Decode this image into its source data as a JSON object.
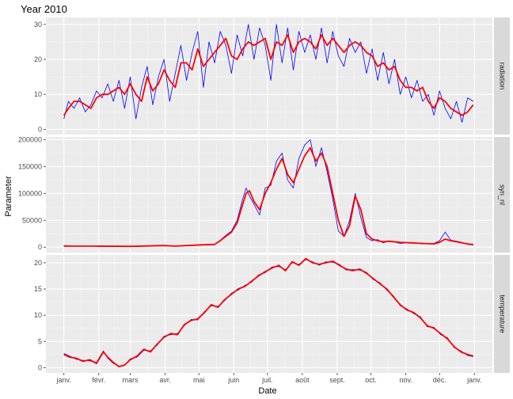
{
  "chart_data": {
    "type": "line",
    "title": "Year 2010",
    "xlabel": "Date",
    "ylabel": "Parameter",
    "x_ticks": [
      "janv.",
      "févr.",
      "mars",
      "avr.",
      "mai",
      "juin",
      "juil.",
      "août",
      "sept.",
      "oct.",
      "nov.",
      "déc.",
      "janv."
    ],
    "x_range": [
      "2010-01-01",
      "2011-01-01"
    ],
    "grid": true,
    "colors": {
      "raw": "#0000ff",
      "smooth": "#ff0000",
      "panel_bg": "#ebebeb",
      "strip_bg": "#d9d9d9"
    },
    "series_styles": [
      {
        "role": "daily",
        "color": "#0000ff",
        "line_width": "thin"
      },
      {
        "role": "smoothed",
        "color": "#ff0000",
        "line_width": "thick"
      }
    ],
    "panels": [
      {
        "name": "radiation",
        "ylim": [
          -1.5,
          32
        ],
        "y_ticks": [
          0,
          10,
          20,
          30
        ],
        "y_tick_labels": [
          "0",
          "10",
          "20",
          "30"
        ],
        "points_doy": [
          1,
          5,
          10,
          15,
          20,
          25,
          30,
          35,
          40,
          45,
          50,
          55,
          60,
          65,
          70,
          75,
          80,
          85,
          90,
          95,
          100,
          105,
          110,
          115,
          120,
          125,
          130,
          135,
          140,
          145,
          150,
          155,
          160,
          165,
          170,
          175,
          180,
          185,
          190,
          195,
          200,
          205,
          210,
          215,
          220,
          225,
          230,
          235,
          240,
          245,
          250,
          255,
          260,
          265,
          270,
          275,
          280,
          285,
          290,
          295,
          300,
          305,
          310,
          315,
          320,
          325,
          330,
          335,
          340,
          345,
          350,
          355,
          360,
          365
        ],
        "smooth": [
          4,
          6,
          8,
          8,
          7,
          6,
          9,
          10,
          10,
          11,
          12,
          10,
          13,
          10,
          8,
          15,
          11,
          13,
          17,
          14,
          12,
          19,
          19,
          17,
          23,
          18,
          20,
          22,
          24,
          26,
          21,
          20,
          23,
          25,
          24,
          25,
          26,
          20,
          25,
          24,
          27,
          22,
          25,
          26,
          25,
          23,
          27,
          24,
          26,
          24,
          22,
          24,
          25,
          24,
          22,
          21,
          18,
          19,
          17,
          18,
          14,
          12,
          12,
          11,
          12,
          8,
          6,
          9,
          8,
          6,
          5,
          4,
          5,
          7
        ],
        "daily": [
          3,
          8,
          6,
          9,
          5,
          7,
          11,
          9,
          13,
          8,
          14,
          6,
          15,
          3,
          12,
          18,
          7,
          15,
          20,
          8,
          16,
          24,
          14,
          22,
          28,
          12,
          25,
          19,
          28,
          24,
          16,
          27,
          21,
          30,
          20,
          29,
          24,
          14,
          30,
          19,
          29,
          17,
          28,
          22,
          27,
          20,
          29,
          19,
          28,
          21,
          18,
          26,
          22,
          25,
          16,
          23,
          14,
          22,
          13,
          20,
          10,
          15,
          9,
          14,
          8,
          10,
          4,
          11,
          6,
          3,
          8,
          2,
          9,
          8
        ]
      },
      {
        "name": "syn_nl",
        "ylim": [
          -10000,
          205000
        ],
        "y_ticks": [
          0,
          50000,
          100000,
          150000,
          200000
        ],
        "y_tick_labels": [
          "0",
          "50000",
          "100000",
          "150000",
          "200000"
        ],
        "points_doy": [
          1,
          30,
          60,
          90,
          100,
          110,
          125,
          135,
          140,
          145,
          150,
          155,
          160,
          163,
          166,
          170,
          175,
          180,
          185,
          190,
          195,
          200,
          205,
          210,
          215,
          220,
          225,
          230,
          235,
          240,
          245,
          250,
          255,
          260,
          265,
          270,
          275,
          280,
          285,
          290,
          300,
          310,
          320,
          330,
          335,
          340,
          345,
          350,
          355,
          360,
          365
        ],
        "smooth": [
          2000,
          2000,
          1500,
          3000,
          2000,
          3000,
          4500,
          5000,
          12000,
          20000,
          28000,
          45000,
          80000,
          100000,
          105000,
          85000,
          70000,
          100000,
          120000,
          145000,
          165000,
          135000,
          120000,
          145000,
          170000,
          185000,
          160000,
          175000,
          150000,
          100000,
          50000,
          20000,
          40000,
          95000,
          70000,
          25000,
          15000,
          12000,
          10000,
          11000,
          9000,
          8000,
          7000,
          6000,
          9000,
          15000,
          12000,
          10000,
          8000,
          6000,
          5000
        ],
        "daily": [
          3000,
          1500,
          1000,
          2500,
          1500,
          3000,
          4000,
          5000,
          13000,
          22000,
          30000,
          50000,
          90000,
          110000,
          95000,
          80000,
          60000,
          110000,
          115000,
          160000,
          175000,
          125000,
          110000,
          165000,
          190000,
          200000,
          150000,
          185000,
          140000,
          90000,
          30000,
          20000,
          50000,
          100000,
          55000,
          18000,
          12000,
          14000,
          8000,
          12000,
          7000,
          9000,
          6000,
          7000,
          12000,
          28000,
          13000,
          11000,
          9000,
          5000,
          4000
        ]
      },
      {
        "name": "temperature",
        "ylim": [
          -1,
          21.5
        ],
        "y_ticks": [
          0,
          5,
          10,
          15,
          20
        ],
        "y_tick_labels": [
          "0",
          "5",
          "10",
          "15",
          "20"
        ],
        "points_doy": [
          1,
          6,
          12,
          18,
          24,
          30,
          36,
          40,
          45,
          50,
          55,
          60,
          66,
          72,
          78,
          84,
          90,
          96,
          102,
          108,
          114,
          120,
          126,
          132,
          138,
          144,
          150,
          156,
          162,
          168,
          174,
          180,
          186,
          192,
          198,
          204,
          210,
          216,
          222,
          228,
          234,
          240,
          246,
          252,
          258,
          264,
          270,
          276,
          282,
          288,
          294,
          300,
          306,
          312,
          318,
          324,
          330,
          336,
          342,
          348,
          354,
          360,
          365
        ],
        "smooth": [
          2.5,
          2,
          1.8,
          1.2,
          1.5,
          0.8,
          3,
          2,
          1,
          0.2,
          0.5,
          1.5,
          2.2,
          3.5,
          3,
          4.5,
          5.8,
          6.5,
          6.3,
          8.2,
          9,
          9.3,
          10.5,
          12,
          11.5,
          13,
          14,
          15,
          15.5,
          16.5,
          17.5,
          18.3,
          19,
          19.5,
          18.5,
          20.2,
          19.5,
          20.8,
          20,
          19.7,
          20,
          20.3,
          19.5,
          18.8,
          18.5,
          18.8,
          18,
          17,
          16,
          15,
          13.5,
          12,
          11,
          10.5,
          9.5,
          8,
          7.5,
          6.5,
          5.5,
          4,
          3,
          2.5,
          2.2
        ],
        "daily": [
          2.7,
          2.2,
          1.6,
          1.4,
          1.3,
          1,
          3.2,
          1.8,
          0.8,
          0.3,
          0.4,
          1.7,
          2,
          3.3,
          3.2,
          4.3,
          6,
          6.3,
          6.5,
          8,
          9.2,
          9.1,
          10.7,
          11.8,
          11.7,
          12.8,
          14.2,
          14.8,
          15.7,
          16.3,
          17.7,
          18.1,
          19.2,
          19.3,
          18.7,
          20,
          19.7,
          20.6,
          20.2,
          19.5,
          20.2,
          20.1,
          19.7,
          18.6,
          18.7,
          18.6,
          18.2,
          16.8,
          16.2,
          14.8,
          13.7,
          11.8,
          11.2,
          10.3,
          9.7,
          7.8,
          7.7,
          6.3,
          5.7,
          3.8,
          3.2,
          2.3,
          2.1
        ]
      }
    ]
  }
}
